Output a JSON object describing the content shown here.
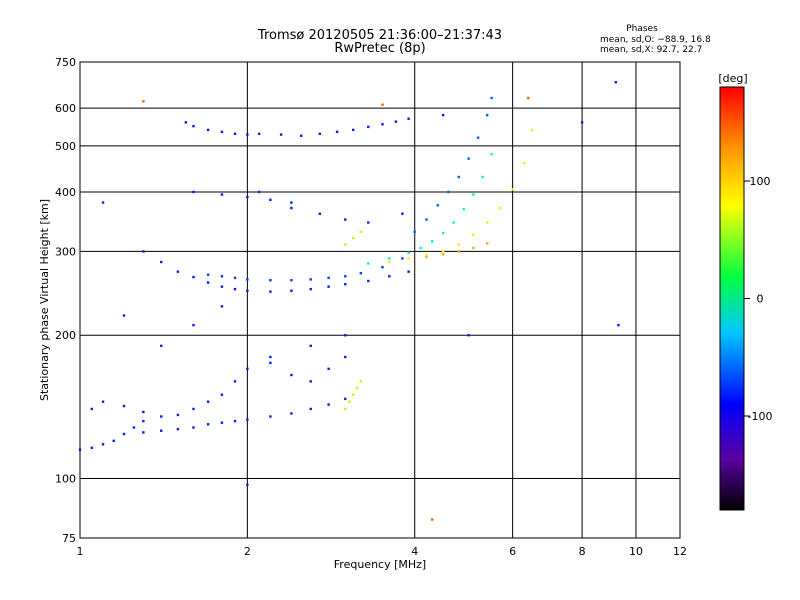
{
  "chart_data": {
    "type": "scatter",
    "title": "Tromsø 20120505 21:36:00–21:37:43",
    "subtitle": "RwPretec (8p)",
    "xlabel": "Frequency [MHz]",
    "ylabel": "Stationary phase Virtual Height [km]",
    "x_scale": "log",
    "y_scale": "log",
    "xlim": [
      1,
      12
    ],
    "ylim": [
      75,
      750
    ],
    "x_ticks": [
      1,
      2,
      4,
      6,
      8,
      10,
      12
    ],
    "y_ticks": [
      75,
      100,
      200,
      300,
      400,
      500,
      600,
      750
    ],
    "grid": true,
    "phase_stats": {
      "title": "Phases",
      "line1": "mean, sd,O: −88.9, 16.8",
      "line2": "mean, sd,X:  92.7, 22.7"
    },
    "colorbar": {
      "label": "[deg]",
      "ticks": [
        100,
        0,
        -100
      ],
      "range": [
        -180,
        180
      ]
    },
    "traces": [
      {
        "name": "",
        "phase": -100,
        "x": [
          1.0,
          1.05,
          1.1,
          1.15,
          1.2,
          1.25,
          1.3
        ],
        "y": [
          115,
          116,
          118,
          120,
          124,
          128,
          132
        ]
      },
      {
        "name": "",
        "phase": -100,
        "x": [
          1.05,
          1.1,
          1.2,
          1.3,
          1.4,
          1.5,
          1.6,
          1.7,
          1.8,
          1.9,
          2.0,
          2.2,
          2.4,
          2.6,
          2.8,
          3.0
        ],
        "y": [
          140,
          145,
          142,
          138,
          135,
          136,
          140,
          145,
          150,
          160,
          170,
          175,
          165,
          160,
          170,
          180
        ]
      },
      {
        "name": "",
        "phase": -100,
        "x": [
          1.3,
          1.4,
          1.5,
          1.6,
          1.7,
          1.8,
          1.9,
          2.0,
          2.2,
          2.4,
          2.6,
          2.8,
          3.0
        ],
        "y": [
          125,
          126,
          127,
          128,
          130,
          131,
          132,
          133,
          135,
          137,
          140,
          143,
          147
        ]
      },
      {
        "name": "",
        "phase": -100,
        "x": [
          1.3,
          1.4,
          1.5,
          1.6,
          1.7,
          1.8,
          1.9,
          2.0,
          2.2,
          2.4,
          2.6,
          2.8,
          3.0,
          3.3,
          3.6,
          3.9
        ],
        "y": [
          300,
          285,
          272,
          265,
          258,
          253,
          250,
          248,
          247,
          248,
          250,
          253,
          256,
          260,
          266,
          272
        ]
      },
      {
        "name": "",
        "phase": -90,
        "x": [
          1.7,
          1.8,
          1.9,
          2.0,
          2.2,
          2.4,
          2.6,
          2.8,
          3.0,
          3.2,
          3.5,
          3.8
        ],
        "y": [
          268,
          266,
          264,
          262,
          261,
          261,
          262,
          264,
          266,
          270,
          278,
          290
        ]
      },
      {
        "name": "",
        "phase": -100,
        "x": [
          1.55,
          1.6,
          1.7,
          1.8,
          1.9,
          2.0,
          2.1
        ],
        "y": [
          560,
          550,
          540,
          535,
          530,
          528,
          530
        ]
      },
      {
        "name": "",
        "phase": -100,
        "x": [
          2.3,
          2.5,
          2.7,
          2.9,
          3.1,
          3.3,
          3.5,
          3.7,
          3.9
        ],
        "y": [
          528,
          525,
          530,
          535,
          540,
          548,
          555,
          562,
          570
        ]
      },
      {
        "name": "",
        "phase": -100,
        "x": [
          1.6,
          1.8,
          2.0,
          2.2,
          2.4
        ],
        "y": [
          400,
          395,
          390,
          385,
          380
        ]
      },
      {
        "name": "",
        "phase": -20,
        "x": [
          3.3,
          3.6,
          3.9,
          4.1,
          4.3,
          4.5,
          4.7,
          4.9,
          5.1,
          5.3,
          5.5
        ],
        "y": [
          283,
          290,
          298,
          305,
          315,
          328,
          345,
          368,
          395,
          430,
          480
        ]
      },
      {
        "name": "",
        "phase": -80,
        "x": [
          4.0,
          4.2,
          4.4,
          4.6,
          4.8,
          5.0,
          5.2,
          5.4,
          5.5
        ],
        "y": [
          330,
          350,
          375,
          400,
          430,
          470,
          520,
          580,
          630
        ]
      },
      {
        "name": "",
        "phase": 110,
        "x": [
          3.6,
          3.9,
          4.2,
          4.5,
          4.8,
          5.1,
          5.4,
          5.7,
          6.0,
          6.3,
          6.5
        ],
        "y": [
          285,
          290,
          295,
          300,
          310,
          325,
          345,
          370,
          405,
          460,
          540
        ]
      },
      {
        "name": "",
        "phase": 130,
        "x": [
          4.2,
          4.5,
          4.8,
          5.1,
          5.4
        ],
        "y": [
          292,
          296,
          300,
          305,
          312
        ]
      },
      {
        "name": "",
        "phase": 95,
        "x": [
          3.0,
          3.05,
          3.1,
          3.15,
          3.2,
          3.0,
          3.1,
          3.2
        ],
        "y": [
          140,
          145,
          150,
          155,
          160,
          310,
          320,
          330
        ]
      },
      {
        "name": "",
        "phase": -100,
        "x": [
          2.1,
          2.4,
          2.7,
          3.0,
          3.3,
          3.8
        ],
        "y": [
          400,
          370,
          360,
          350,
          345,
          360
        ]
      },
      {
        "name": "",
        "phase": -100,
        "x": [
          1.1,
          1.2,
          1.4,
          1.6,
          1.8,
          2.0,
          2.2,
          2.6,
          3.0,
          4.5,
          5.0,
          8.0,
          9.2,
          9.3
        ],
        "y": [
          380,
          220,
          190,
          210,
          230,
          97,
          180,
          190,
          200,
          580,
          200,
          560,
          680,
          210
        ]
      },
      {
        "name": "",
        "phase": 150,
        "x": [
          4.3,
          1.3,
          3.5,
          6.4
        ],
        "y": [
          82,
          620,
          610,
          630
        ]
      }
    ]
  }
}
